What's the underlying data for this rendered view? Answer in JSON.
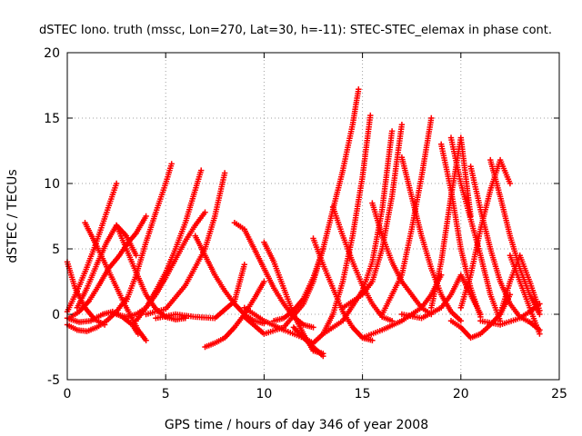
{
  "chart_data": {
    "type": "scatter",
    "title": "dSTEC Iono. truth (mssc, Lon=270, Lat=30, h=-11): STEC-STEC_elemax in phase cont.",
    "xlabel": "GPS time / hours of day 346 of year 2008",
    "ylabel": "dSTEC  / TECUs",
    "xlim": [
      0,
      25
    ],
    "ylim": [
      -5,
      20
    ],
    "xticks": [
      0,
      5,
      10,
      15,
      20,
      25
    ],
    "yticks": [
      -5,
      0,
      5,
      10,
      15,
      20
    ],
    "grid": true,
    "marker": "+",
    "color": "#ff0000",
    "series": [
      {
        "x": [
          0.0,
          0.5,
          1.0,
          1.5,
          2.0,
          2.5
        ],
        "y": [
          0.2,
          1.8,
          3.6,
          5.6,
          7.8,
          10.0
        ]
      },
      {
        "x": [
          0.9,
          1.5,
          2.2,
          2.9,
          3.6,
          4.0
        ],
        "y": [
          7.0,
          5.2,
          3.0,
          0.8,
          -1.2,
          -2.0
        ]
      },
      {
        "x": [
          0.0,
          0.4,
          0.9,
          1.4,
          1.9
        ],
        "y": [
          4.0,
          2.0,
          0.5,
          -0.4,
          -0.8
        ]
      },
      {
        "x": [
          0.0,
          0.5,
          1.0,
          1.5,
          2.0,
          2.5,
          3.0
        ],
        "y": [
          -0.8,
          -1.2,
          -1.3,
          -1.0,
          -0.5,
          0.2,
          1.2
        ]
      },
      {
        "x": [
          0.0,
          0.6,
          1.2,
          1.8,
          2.3,
          2.8,
          3.3,
          3.6
        ],
        "y": [
          -0.3,
          -0.6,
          -0.5,
          0.0,
          0.2,
          -0.2,
          -0.8,
          -1.5
        ]
      },
      {
        "x": [
          0.1,
          0.6,
          1.1,
          1.6,
          2.1,
          2.6,
          3.1,
          3.5,
          4.0
        ],
        "y": [
          -0.3,
          0.2,
          1.0,
          2.2,
          3.5,
          4.4,
          5.5,
          6.2,
          7.5
        ]
      },
      {
        "x": [
          0.5,
          1.0,
          1.5,
          2.0,
          2.5,
          3.0,
          3.5
        ],
        "y": [
          0.5,
          2.0,
          3.8,
          5.5,
          6.8,
          6.0,
          4.5
        ]
      },
      {
        "x": [
          2.5,
          3.0,
          3.5,
          4.0,
          4.5,
          5.0,
          5.5,
          6.0
        ],
        "y": [
          6.8,
          5.0,
          3.2,
          1.5,
          0.4,
          -0.2,
          -0.4,
          -0.3
        ]
      },
      {
        "x": [
          2.5,
          3.0,
          3.5,
          4.0,
          4.5,
          5.0,
          5.5,
          6.0,
          6.5,
          7.0
        ],
        "y": [
          0.0,
          -0.2,
          0.0,
          0.5,
          1.5,
          2.8,
          4.2,
          5.6,
          6.8,
          7.8
        ]
      },
      {
        "x": [
          3.0,
          3.5,
          4.0,
          4.5,
          5.0,
          5.3
        ],
        "y": [
          1.0,
          3.0,
          5.5,
          7.8,
          10.0,
          11.5
        ]
      },
      {
        "x": [
          3.5,
          4.0,
          4.5,
          5.0,
          5.5,
          6.0,
          6.5,
          6.8
        ],
        "y": [
          -0.5,
          0.5,
          1.8,
          3.2,
          5.0,
          7.0,
          9.5,
          11.0
        ]
      },
      {
        "x": [
          4.0,
          5.0,
          6.0,
          7.0,
          7.5,
          8.0
        ],
        "y": [
          0.0,
          0.4,
          2.2,
          5.0,
          7.5,
          10.8
        ]
      },
      {
        "x": [
          4.5,
          5.5,
          6.5,
          7.5,
          8.5,
          9.0
        ],
        "y": [
          -0.3,
          0.0,
          -0.2,
          -0.3,
          1.0,
          3.8
        ]
      },
      {
        "x": [
          6.5,
          7.0,
          7.5,
          8.0,
          8.5,
          9.0,
          9.5,
          10.0
        ],
        "y": [
          6.0,
          4.5,
          3.0,
          1.8,
          0.8,
          0.0,
          -0.5,
          -0.7
        ]
      },
      {
        "x": [
          7.0,
          7.5,
          8.0,
          8.5,
          9.0,
          9.5,
          10.0
        ],
        "y": [
          -2.5,
          -2.2,
          -1.8,
          -1.0,
          0.0,
          1.2,
          2.5
        ]
      },
      {
        "x": [
          8.5,
          9.0,
          9.5,
          10.0,
          10.5,
          11.0,
          11.5,
          12.0,
          12.5
        ],
        "y": [
          7.0,
          6.5,
          5.0,
          3.5,
          2.0,
          0.8,
          -0.2,
          -0.8,
          -1.0
        ]
      },
      {
        "x": [
          9.0,
          10.0,
          11.0,
          12.0,
          12.5,
          13.0
        ],
        "y": [
          -0.2,
          -1.5,
          -1.0,
          0.8,
          2.5,
          5.0
        ]
      },
      {
        "x": [
          10.0,
          10.5,
          11.0,
          11.5,
          12.0,
          12.5,
          13.0
        ],
        "y": [
          5.5,
          4.0,
          2.0,
          0.0,
          -1.5,
          -2.8,
          -3.0
        ]
      },
      {
        "x": [
          9.0,
          10.0,
          11.0,
          12.0,
          12.5,
          13.0
        ],
        "y": [
          0.5,
          -0.5,
          -1.2,
          -1.8,
          -2.5,
          -3.2
        ]
      },
      {
        "x": [
          10.5,
          11.0,
          11.5,
          12.0,
          12.5,
          13.0,
          13.5,
          14.0,
          14.5,
          14.8
        ],
        "y": [
          -0.5,
          -0.3,
          0.3,
          1.2,
          2.8,
          5.0,
          8.0,
          11.0,
          14.5,
          17.2
        ]
      },
      {
        "x": [
          11.5,
          12.0,
          12.5,
          13.0,
          13.5,
          14.0,
          14.5,
          15.0,
          15.4
        ],
        "y": [
          -1.0,
          -1.8,
          -2.2,
          -1.5,
          0.0,
          2.5,
          6.0,
          10.5,
          15.2
        ]
      },
      {
        "x": [
          12.5,
          13.0,
          13.5,
          14.0,
          14.5,
          15.0,
          15.5
        ],
        "y": [
          5.8,
          3.8,
          2.0,
          0.2,
          -1.0,
          -1.8,
          -2.0
        ]
      },
      {
        "x": [
          13.0,
          14.0,
          15.0,
          15.5,
          16.0,
          16.5
        ],
        "y": [
          -1.5,
          -0.5,
          1.8,
          4.0,
          8.0,
          14.0
        ]
      },
      {
        "x": [
          13.5,
          14.0,
          14.5,
          15.0,
          15.5,
          16.0,
          16.5
        ],
        "y": [
          8.2,
          6.0,
          4.0,
          2.2,
          0.8,
          -0.2,
          -0.5
        ]
      },
      {
        "x": [
          14.0,
          15.0,
          15.5,
          16.0,
          16.5,
          17.0
        ],
        "y": [
          0.5,
          1.5,
          2.5,
          5.0,
          9.0,
          14.5
        ]
      },
      {
        "x": [
          15.5,
          16.0,
          16.5,
          17.0,
          17.5,
          18.0,
          18.5
        ],
        "y": [
          8.5,
          6.0,
          4.0,
          2.5,
          1.5,
          0.5,
          0.0
        ]
      },
      {
        "x": [
          15.0,
          16.0,
          17.0,
          18.0,
          18.5,
          19.0
        ],
        "y": [
          -1.8,
          -1.2,
          -0.5,
          0.5,
          1.5,
          3.0
        ]
      },
      {
        "x": [
          16.0,
          17.0,
          17.5,
          18.0,
          18.5
        ],
        "y": [
          0.0,
          3.0,
          6.5,
          10.5,
          15.0
        ]
      },
      {
        "x": [
          17.0,
          17.5,
          18.0,
          18.5,
          19.0,
          19.5,
          20.0
        ],
        "y": [
          12.0,
          9.0,
          6.0,
          3.5,
          1.5,
          0.2,
          -0.5
        ]
      },
      {
        "x": [
          17.0,
          18.0,
          19.0,
          19.5,
          20.0,
          20.5,
          21.0
        ],
        "y": [
          0.0,
          -0.3,
          0.5,
          1.5,
          3.0,
          1.5,
          0.0
        ]
      },
      {
        "x": [
          18.5,
          19.0,
          19.5,
          20.0,
          20.5
        ],
        "y": [
          0.5,
          4.0,
          9.0,
          13.5,
          7.5
        ]
      },
      {
        "x": [
          19.0,
          19.5,
          20.0,
          20.5,
          21.0
        ],
        "y": [
          13.0,
          9.5,
          5.0,
          2.0,
          -0.2
        ]
      },
      {
        "x": [
          19.5,
          20.0,
          21.0,
          21.5,
          22.0
        ],
        "y": [
          13.5,
          10.0,
          4.5,
          1.5,
          -0.5
        ]
      },
      {
        "x": [
          19.5,
          20.0,
          20.5,
          21.0,
          21.5,
          22.0,
          22.5
        ],
        "y": [
          -0.5,
          -1.0,
          -1.8,
          -1.5,
          -0.8,
          0.0,
          1.5
        ]
      },
      {
        "x": [
          20.0,
          20.5,
          21.0,
          21.5,
          22.0,
          22.5
        ],
        "y": [
          0.5,
          3.0,
          6.5,
          9.5,
          11.8,
          10.0
        ]
      },
      {
        "x": [
          20.5,
          21.0,
          21.5,
          22.0,
          22.5,
          23.0,
          23.5,
          24.0
        ],
        "y": [
          11.3,
          8.0,
          5.0,
          2.5,
          0.8,
          -0.2,
          -0.6,
          -1.2
        ]
      },
      {
        "x": [
          21.5,
          22.0,
          22.5,
          23.0,
          23.5,
          24.0
        ],
        "y": [
          11.8,
          9.0,
          6.0,
          3.5,
          1.5,
          0.0
        ]
      },
      {
        "x": [
          22.0,
          22.5,
          23.0,
          23.5,
          24.0
        ],
        "y": [
          0.0,
          2.5,
          4.5,
          2.5,
          0.3
        ]
      },
      {
        "x": [
          22.5,
          23.0,
          23.5,
          24.0
        ],
        "y": [
          4.5,
          2.5,
          0.5,
          -1.5
        ]
      },
      {
        "x": [
          21.0,
          22.0,
          23.0,
          23.5,
          24.0
        ],
        "y": [
          -0.5,
          -0.8,
          -0.3,
          0.2,
          0.8
        ]
      }
    ]
  }
}
